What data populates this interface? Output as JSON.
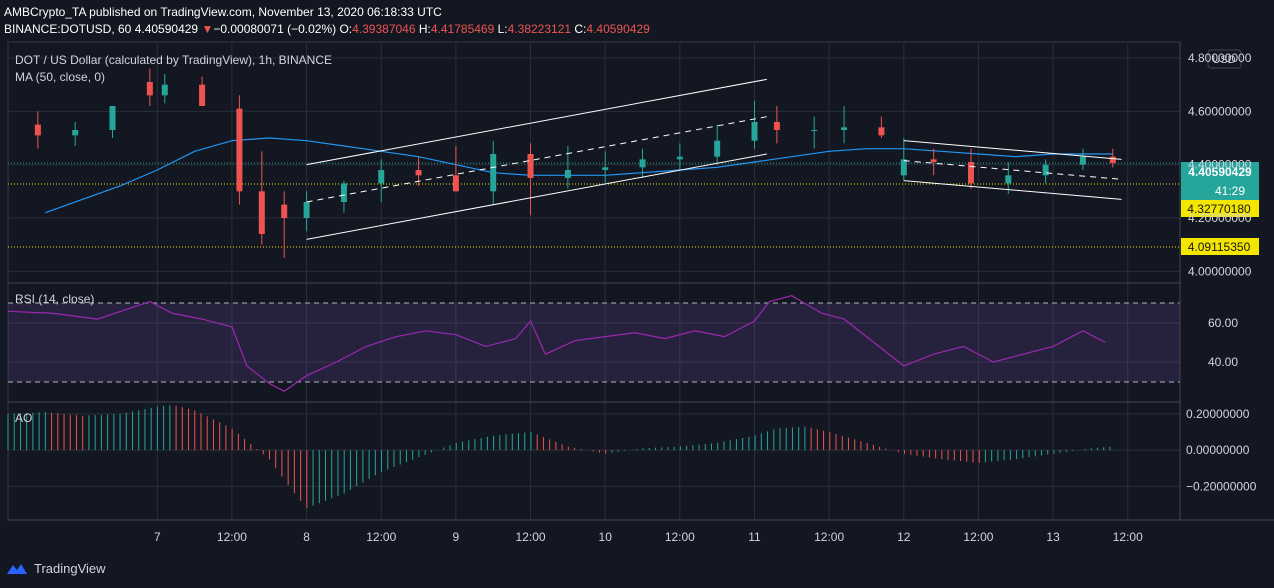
{
  "header": {
    "publisher": "AMBCrypto_TA",
    "published_text": "published on TradingView.com, November 13, 2020 06:18:33 UTC",
    "symbol": "BINANCE:DOTUSD, 60",
    "last": "4.40590429",
    "change": "−0.00080071 (−0.02%)",
    "open_label": "O:",
    "open": "4.39387046",
    "high_label": "H:",
    "high": "4.41785469",
    "low_label": "L:",
    "low": "4.38223121",
    "close_label": "C:",
    "close": "4.40590429"
  },
  "legend": {
    "main": "DOT / US Dollar (calculated by TradingView), 1h, BINANCE",
    "ma": "MA (50, close, 0)",
    "rsi": "RSI (14, close)",
    "ao": "AO"
  },
  "price_axis": {
    "currency": "USD",
    "current_price": "4.40590429",
    "countdown": "41:29",
    "level_1": "4.32770180",
    "level_2": "4.09115350"
  },
  "footer": {
    "brand": "TradingView"
  },
  "colors": {
    "up": "#26a69a",
    "down": "#ef5350",
    "ma": "#2196f3",
    "rsi": "#9c27b0",
    "level": "#f5e600",
    "channel": "#ffffff",
    "bg": "#131722",
    "grid": "#2a2e39"
  },
  "chart_data": [
    {
      "type": "candlestick",
      "title": "DOT / US Dollar (calculated by TradingView), 1h, BINANCE",
      "x_tick_labels": [
        "7",
        "12:00",
        "8",
        "12:00",
        "9",
        "12:00",
        "10",
        "12:00",
        "11",
        "12:00",
        "12",
        "12:00",
        "13",
        "12:00"
      ],
      "y_tick_labels": [
        "4.80000000",
        "4.60000000",
        "4.40000000",
        "4.20000000",
        "4.00000000"
      ],
      "ylim": [
        3.96,
        4.86
      ],
      "grid": true,
      "price_levels": [
        4.3277018,
        4.0911535
      ],
      "last_price": 4.40590429,
      "channels": [
        {
          "name": "ascending channel upper",
          "start": [
            8,
            4.4
          ],
          "end": [
            11.083,
            4.72
          ]
        },
        {
          "name": "ascending channel lower",
          "start": [
            8,
            4.12
          ],
          "end": [
            11.083,
            4.44
          ]
        },
        {
          "name": "ascending channel median",
          "start": [
            8,
            4.26
          ],
          "end": [
            11.083,
            4.58
          ],
          "dashed": true
        },
        {
          "name": "descending channel upper",
          "start": [
            12,
            4.49
          ],
          "end": [
            13.458,
            4.42
          ]
        },
        {
          "name": "descending channel lower",
          "start": [
            12,
            4.34
          ],
          "end": [
            13.458,
            4.27
          ]
        },
        {
          "name": "descending channel median",
          "start": [
            12,
            4.415
          ],
          "end": [
            13.458,
            4.345
          ],
          "dashed": true
        }
      ],
      "ma_series": {
        "name": "MA (50, close, 0)",
        "x": [
          6.25,
          6.5,
          6.75,
          7.0,
          7.25,
          7.5,
          7.75,
          8.0,
          8.25,
          8.5,
          8.75,
          9.0,
          9.25,
          9.5,
          9.75,
          10.0,
          10.25,
          10.5,
          10.75,
          11.0,
          11.25,
          11.5,
          11.75,
          12.0,
          12.25,
          12.5,
          12.75,
          13.0,
          13.25,
          13.4
        ],
        "y": [
          4.22,
          4.27,
          4.32,
          4.38,
          4.45,
          4.49,
          4.5,
          4.49,
          4.47,
          4.45,
          4.43,
          4.4,
          4.37,
          4.36,
          4.36,
          4.36,
          4.37,
          4.38,
          4.39,
          4.41,
          4.43,
          4.45,
          4.46,
          4.46,
          4.45,
          4.44,
          4.43,
          4.44,
          4.44,
          4.44
        ]
      },
      "candles": {
        "x": [
          6.2,
          6.45,
          6.7,
          6.95,
          7.05,
          7.3,
          7.55,
          7.7,
          7.85,
          8.0,
          8.25,
          8.5,
          8.75,
          9.0,
          9.25,
          9.5,
          9.75,
          10.0,
          10.25,
          10.5,
          10.75,
          11.0,
          11.15,
          11.4,
          11.6,
          11.85,
          12.0,
          12.2,
          12.45,
          12.7,
          12.95,
          13.2,
          13.4
        ],
        "open": [
          4.55,
          4.51,
          4.53,
          4.71,
          4.66,
          4.7,
          4.61,
          4.3,
          4.25,
          4.2,
          4.26,
          4.33,
          4.38,
          4.36,
          4.3,
          4.44,
          4.35,
          4.38,
          4.39,
          4.42,
          4.43,
          4.49,
          4.56,
          4.53,
          4.53,
          4.54,
          4.36,
          4.42,
          4.41,
          4.33,
          4.36,
          4.4,
          4.43
        ],
        "high": [
          4.6,
          4.56,
          4.6,
          4.76,
          4.74,
          4.73,
          4.66,
          4.45,
          4.3,
          4.3,
          4.34,
          4.42,
          4.43,
          4.47,
          4.49,
          4.48,
          4.47,
          4.45,
          4.46,
          4.48,
          4.55,
          4.64,
          4.62,
          4.58,
          4.62,
          4.58,
          4.5,
          4.46,
          4.46,
          4.41,
          4.42,
          4.46,
          4.46
        ],
        "low": [
          4.46,
          4.47,
          4.5,
          4.62,
          4.63,
          4.62,
          4.25,
          4.1,
          4.05,
          4.15,
          4.22,
          4.26,
          4.32,
          4.3,
          4.25,
          4.21,
          4.31,
          4.33,
          4.35,
          4.38,
          4.4,
          4.46,
          4.48,
          4.46,
          4.48,
          4.5,
          4.34,
          4.36,
          4.31,
          4.29,
          4.33,
          4.38,
          4.39
        ],
        "close": [
          4.51,
          4.53,
          4.62,
          4.66,
          4.7,
          4.62,
          4.3,
          4.14,
          4.2,
          4.26,
          4.33,
          4.38,
          4.36,
          4.3,
          4.44,
          4.35,
          4.38,
          4.39,
          4.42,
          4.43,
          4.49,
          4.56,
          4.53,
          4.53,
          4.54,
          4.51,
          4.42,
          4.41,
          4.33,
          4.36,
          4.4,
          4.43,
          4.406
        ]
      }
    },
    {
      "type": "line",
      "title": "RSI (14, close)",
      "y_tick_labels": [
        "60.00",
        "40.00"
      ],
      "ylim": [
        20,
        80
      ],
      "bands": [
        30,
        70
      ],
      "series": [
        {
          "name": "RSI (14, close)",
          "x": [
            6.0,
            6.3,
            6.6,
            6.95,
            7.1,
            7.3,
            7.5,
            7.6,
            7.75,
            7.85,
            8.0,
            8.2,
            8.4,
            8.6,
            8.8,
            9.0,
            9.2,
            9.4,
            9.5,
            9.6,
            9.8,
            10.0,
            10.2,
            10.4,
            10.6,
            10.8,
            11.0,
            11.1,
            11.25,
            11.45,
            11.6,
            11.8,
            12.0,
            12.2,
            12.4,
            12.6,
            12.8,
            13.0,
            13.2,
            13.35
          ],
          "y": [
            66,
            65,
            62,
            71,
            65,
            62,
            58,
            38,
            29,
            25,
            33,
            40,
            48,
            53,
            56,
            54,
            48,
            52,
            61,
            44,
            51,
            53,
            55,
            52,
            56,
            53,
            61,
            71,
            74,
            65,
            62,
            50,
            38,
            44,
            48,
            40,
            44,
            48,
            56,
            50
          ]
        }
      ]
    },
    {
      "type": "bar",
      "title": "AO",
      "y_tick_labels": [
        "0.20000000",
        "0.00000000",
        "−0.20000000"
      ],
      "ylim": [
        -0.38,
        0.26
      ],
      "series": [
        {
          "name": "AO",
          "x": [
            6.0,
            6.25,
            6.5,
            6.75,
            7.0,
            7.1,
            7.25,
            7.5,
            7.75,
            7.9,
            8.0,
            8.25,
            8.5,
            8.75,
            9.0,
            9.25,
            9.5,
            9.75,
            10.0,
            10.25,
            10.5,
            10.75,
            11.0,
            11.15,
            11.35,
            11.5,
            11.75,
            12.0,
            12.25,
            12.5,
            12.75,
            13.0,
            13.25,
            13.4
          ],
          "y": [
            0.2,
            0.21,
            0.19,
            0.2,
            0.24,
            0.25,
            0.22,
            0.12,
            -0.05,
            -0.22,
            -0.32,
            -0.24,
            -0.12,
            -0.04,
            0.04,
            0.08,
            0.1,
            0.02,
            -0.02,
            0.01,
            0.02,
            0.04,
            0.08,
            0.12,
            0.13,
            0.1,
            0.04,
            -0.02,
            -0.05,
            -0.07,
            -0.05,
            -0.02,
            0.01,
            0.02
          ]
        }
      ]
    }
  ]
}
